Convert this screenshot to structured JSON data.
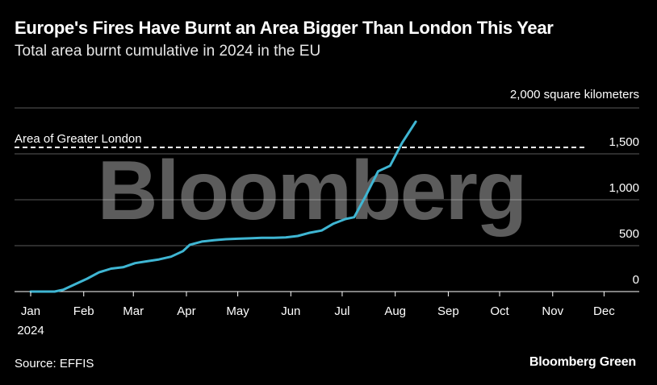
{
  "title": "Europe's Fires Have Burnt an Area Bigger Than London This Year",
  "subtitle": "Total area burnt cumulative in 2024 in the EU",
  "unit_label": "2,000 square kilometers",
  "watermark": "Bloomberg",
  "source": "Source: EFFIS",
  "brand": "Bloomberg Green",
  "colors": {
    "background": "#000000",
    "line": "#3fb6d3",
    "grid": "#5a5a5a",
    "reference": "#ffffff"
  },
  "chart_data": {
    "type": "line",
    "title": "Europe's Fires Have Burnt an Area Bigger Than London This Year",
    "subtitle": "Total area burnt cumulative in 2024 in the EU",
    "y_axis": {
      "min": 0,
      "max": 2000,
      "ticks": [
        0,
        500,
        1000,
        1500
      ],
      "tick_labels": [
        "0",
        "500",
        "1,000",
        "1,500"
      ],
      "unit": "2,000 square kilometers",
      "position": "right"
    },
    "x_axis": {
      "min": "2024-01-01",
      "max": "2024-12-31",
      "tick_labels": [
        "Jan",
        "Feb",
        "Mar",
        "Apr",
        "May",
        "Jun",
        "Jul",
        "Aug",
        "Sep",
        "Oct",
        "Nov",
        "Dec"
      ],
      "tick_dates": [
        "2024-01-01",
        "2024-02-01",
        "2024-03-01",
        "2024-04-01",
        "2024-05-01",
        "2024-06-01",
        "2024-07-01",
        "2024-08-01",
        "2024-09-01",
        "2024-10-01",
        "2024-11-01",
        "2024-12-01"
      ],
      "year_label": "2024"
    },
    "grid": true,
    "reference_line": {
      "label": "Area of Greater London",
      "value": 1570
    },
    "series": [
      {
        "points": [
          [
            "2024-01-01",
            0
          ],
          [
            "2024-01-15",
            0
          ],
          [
            "2024-01-20",
            20
          ],
          [
            "2024-01-27",
            80
          ],
          [
            "2024-02-03",
            140
          ],
          [
            "2024-02-10",
            210
          ],
          [
            "2024-02-17",
            250
          ],
          [
            "2024-02-24",
            265
          ],
          [
            "2024-03-02",
            310
          ],
          [
            "2024-03-09",
            330
          ],
          [
            "2024-03-16",
            350
          ],
          [
            "2024-03-23",
            380
          ],
          [
            "2024-03-30",
            440
          ],
          [
            "2024-04-03",
            510
          ],
          [
            "2024-04-10",
            545
          ],
          [
            "2024-04-17",
            560
          ],
          [
            "2024-04-24",
            570
          ],
          [
            "2024-05-01",
            575
          ],
          [
            "2024-05-08",
            580
          ],
          [
            "2024-05-15",
            585
          ],
          [
            "2024-05-22",
            585
          ],
          [
            "2024-05-29",
            590
          ],
          [
            "2024-06-05",
            605
          ],
          [
            "2024-06-12",
            640
          ],
          [
            "2024-06-19",
            665
          ],
          [
            "2024-06-26",
            740
          ],
          [
            "2024-07-03",
            790
          ],
          [
            "2024-07-08",
            810
          ],
          [
            "2024-07-15",
            1050
          ],
          [
            "2024-07-22",
            1310
          ],
          [
            "2024-07-29",
            1370
          ],
          [
            "2024-08-05",
            1620
          ],
          [
            "2024-08-13",
            1850
          ]
        ]
      }
    ]
  }
}
